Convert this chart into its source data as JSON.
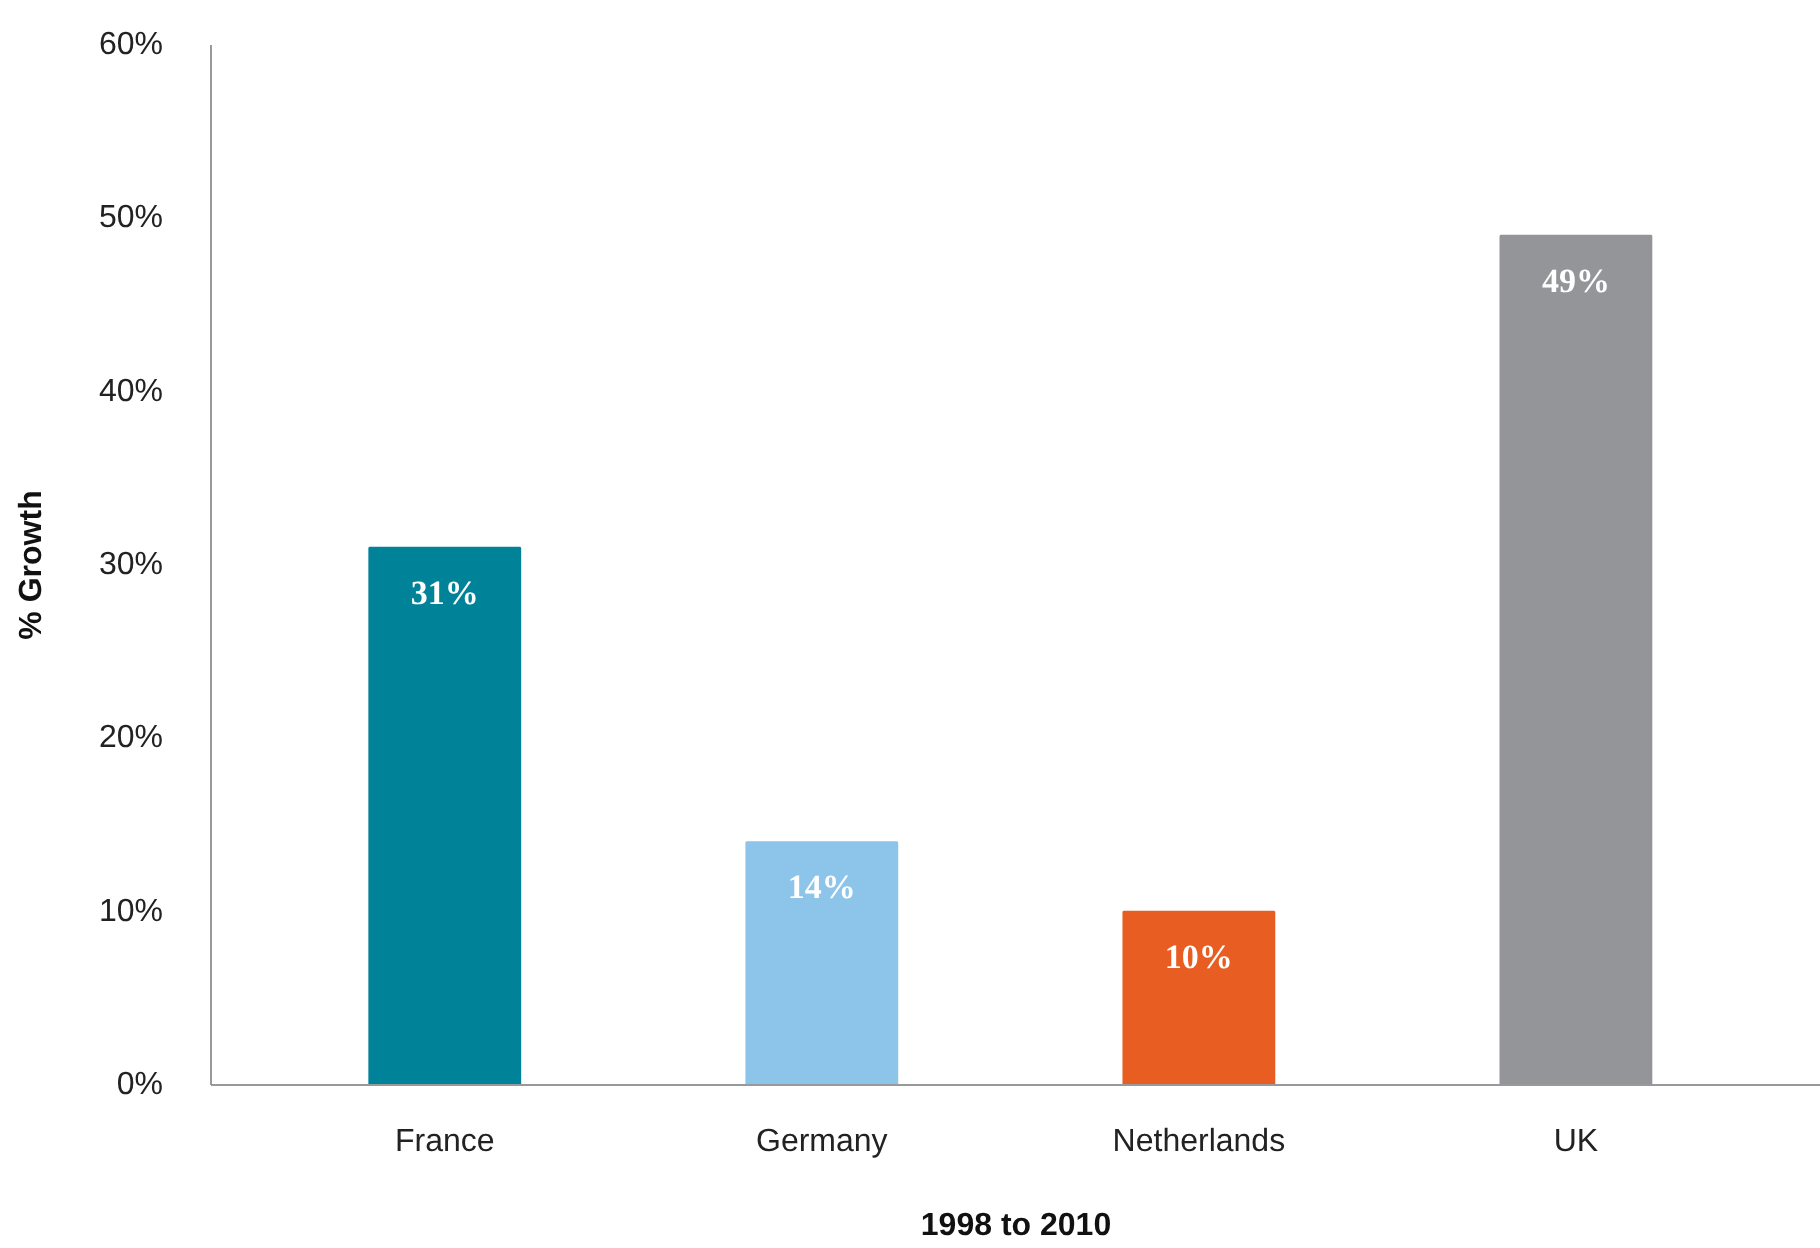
{
  "chart_data": {
    "type": "bar",
    "xlabel": "1998 to 2010",
    "ylabel": "% Growth",
    "categories": [
      "France",
      "Germany",
      "Netherlands",
      "UK"
    ],
    "values": [
      31,
      14,
      10,
      49
    ],
    "colors": [
      "#008299",
      "#8dc4ea",
      "#e85e22",
      "#949599"
    ],
    "value_labels": [
      "31%",
      "14%",
      "10%",
      "49%"
    ],
    "ylim": [
      0,
      60
    ],
    "yticks": [
      {
        "value": 0,
        "label": "0%"
      },
      {
        "value": 10,
        "label": "10%"
      },
      {
        "value": 20,
        "label": "20%"
      },
      {
        "value": 30,
        "label": "30%"
      },
      {
        "value": 40,
        "label": "40%"
      },
      {
        "value": 50,
        "label": "50%"
      },
      {
        "value": 60,
        "label": "60%"
      }
    ],
    "grid": false
  }
}
